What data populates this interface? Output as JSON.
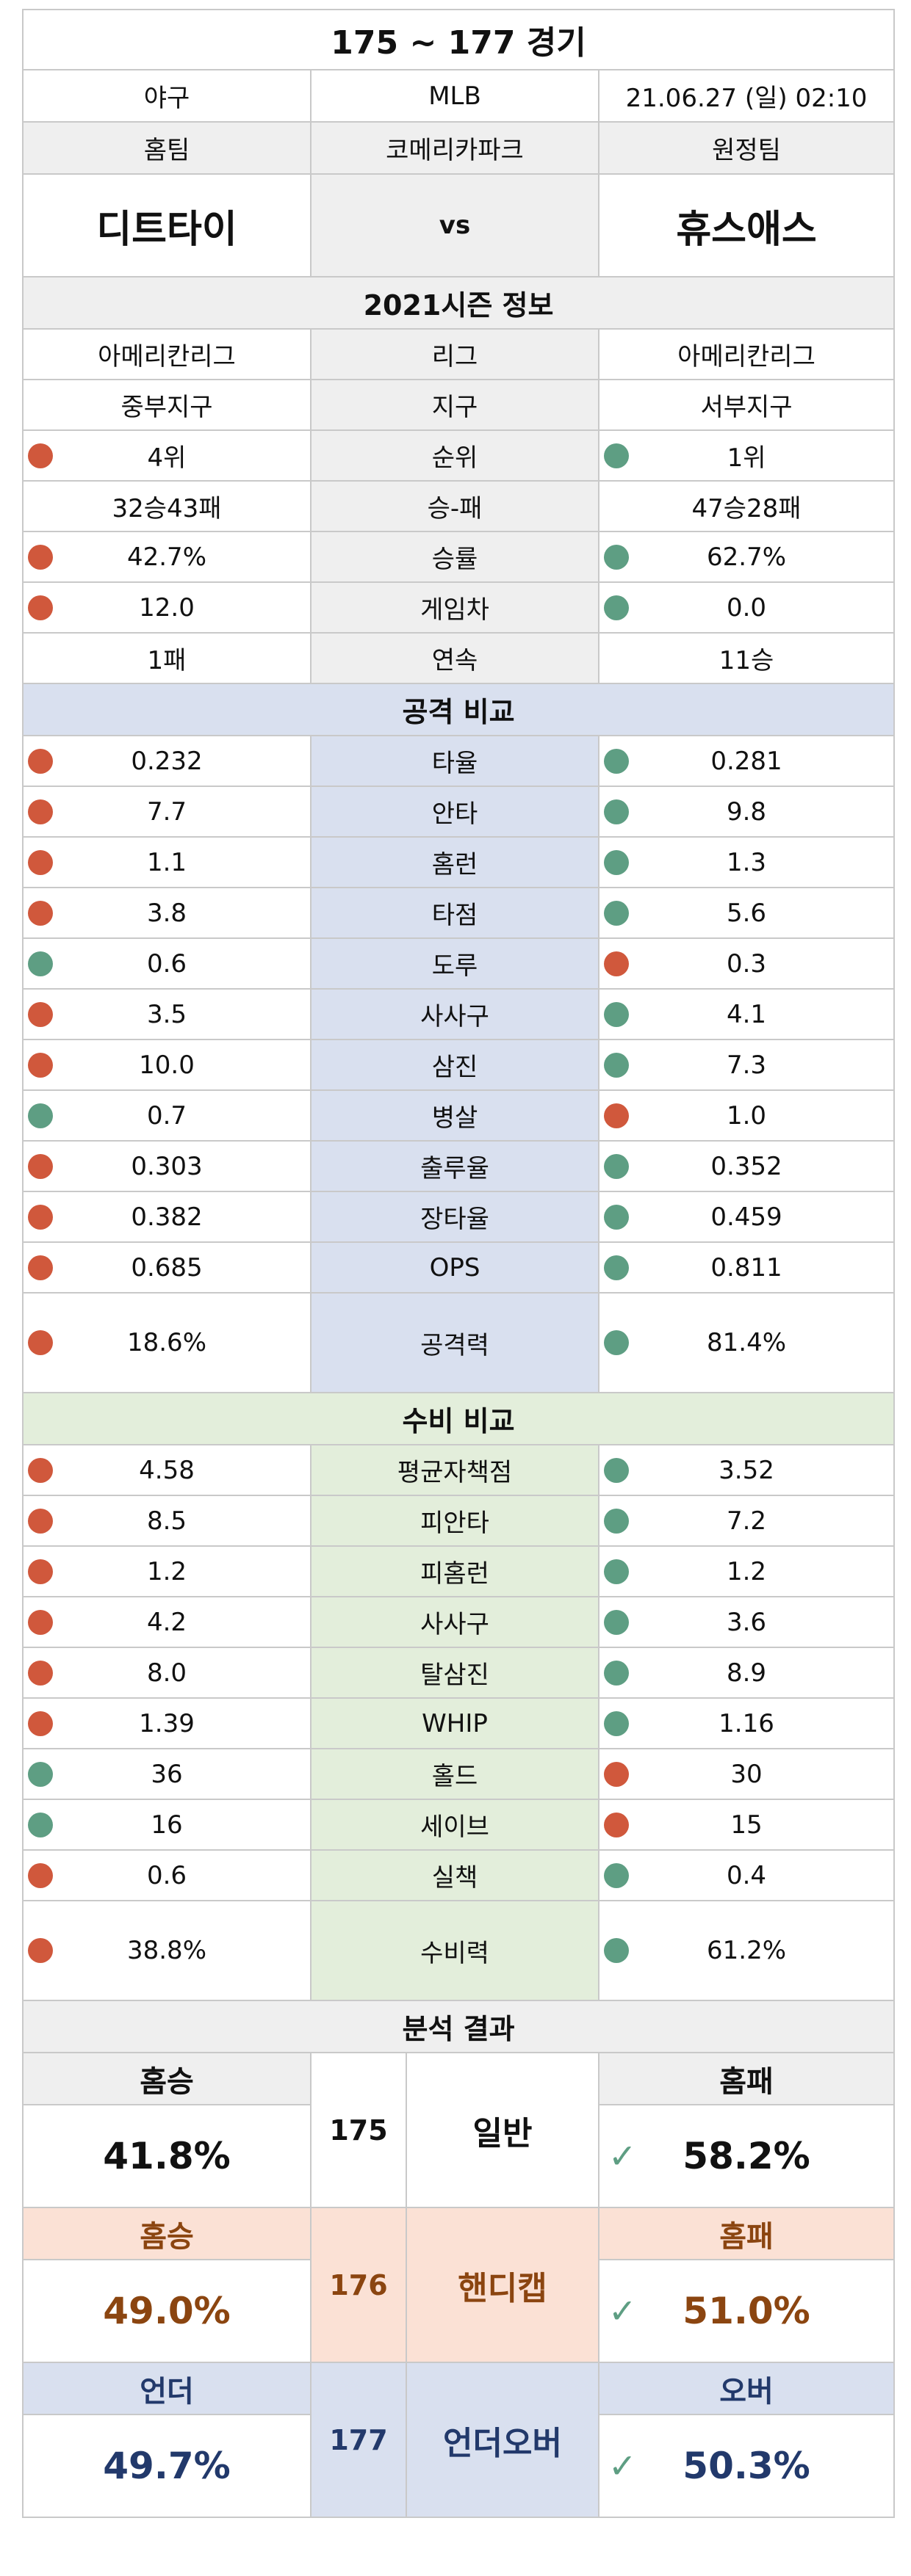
{
  "title": "175 ~ 177 경기",
  "info": {
    "sport": "야구",
    "league": "MLB",
    "datetime": "21.06.27 (일) 02:10"
  },
  "teams": {
    "home_label": "홈팀",
    "stadium": "코메리카파크",
    "away_label": "원정팀",
    "home": "디트타이",
    "vs": "vs",
    "away": "휴스애스"
  },
  "season": {
    "header": "2021시즌 정보",
    "rows": [
      {
        "home": "아메리칸리그",
        "label": "리그",
        "away": "아메리칸리그",
        "home_dot": "",
        "away_dot": ""
      },
      {
        "home": "중부지구",
        "label": "지구",
        "away": "서부지구",
        "home_dot": "",
        "away_dot": ""
      },
      {
        "home": "4위",
        "label": "순위",
        "away": "1위",
        "home_dot": "red",
        "away_dot": "green"
      },
      {
        "home": "32승43패",
        "label": "승-패",
        "away": "47승28패",
        "home_dot": "",
        "away_dot": ""
      },
      {
        "home": "42.7%",
        "label": "승률",
        "away": "62.7%",
        "home_dot": "red",
        "away_dot": "green"
      },
      {
        "home": "12.0",
        "label": "게임차",
        "away": "0.0",
        "home_dot": "red",
        "away_dot": "green"
      },
      {
        "home": "1패",
        "label": "연속",
        "away": "11승",
        "home_dot": "",
        "away_dot": ""
      }
    ]
  },
  "offense": {
    "header": "공격 비교",
    "rows": [
      {
        "home": "0.232",
        "label": "타율",
        "away": "0.281",
        "home_dot": "red",
        "away_dot": "green"
      },
      {
        "home": "7.7",
        "label": "안타",
        "away": "9.8",
        "home_dot": "red",
        "away_dot": "green"
      },
      {
        "home": "1.1",
        "label": "홈런",
        "away": "1.3",
        "home_dot": "red",
        "away_dot": "green"
      },
      {
        "home": "3.8",
        "label": "타점",
        "away": "5.6",
        "home_dot": "red",
        "away_dot": "green"
      },
      {
        "home": "0.6",
        "label": "도루",
        "away": "0.3",
        "home_dot": "green",
        "away_dot": "red"
      },
      {
        "home": "3.5",
        "label": "사사구",
        "away": "4.1",
        "home_dot": "red",
        "away_dot": "green"
      },
      {
        "home": "10.0",
        "label": "삼진",
        "away": "7.3",
        "home_dot": "red",
        "away_dot": "green"
      },
      {
        "home": "0.7",
        "label": "병살",
        "away": "1.0",
        "home_dot": "green",
        "away_dot": "red"
      },
      {
        "home": "0.303",
        "label": "출루율",
        "away": "0.352",
        "home_dot": "red",
        "away_dot": "green"
      },
      {
        "home": "0.382",
        "label": "장타율",
        "away": "0.459",
        "home_dot": "red",
        "away_dot": "green"
      },
      {
        "home": "0.685",
        "label": "OPS",
        "away": "0.811",
        "home_dot": "red",
        "away_dot": "green"
      }
    ],
    "power": {
      "home": "18.6%",
      "label": "공격력",
      "away": "81.4%",
      "home_dot": "red",
      "away_dot": "green"
    }
  },
  "defense": {
    "header": "수비 비교",
    "rows": [
      {
        "home": "4.58",
        "label": "평균자책점",
        "away": "3.52",
        "home_dot": "red",
        "away_dot": "green"
      },
      {
        "home": "8.5",
        "label": "피안타",
        "away": "7.2",
        "home_dot": "red",
        "away_dot": "green"
      },
      {
        "home": "1.2",
        "label": "피홈런",
        "away": "1.2",
        "home_dot": "red",
        "away_dot": "green"
      },
      {
        "home": "4.2",
        "label": "사사구",
        "away": "3.6",
        "home_dot": "red",
        "away_dot": "green"
      },
      {
        "home": "8.0",
        "label": "탈삼진",
        "away": "8.9",
        "home_dot": "red",
        "away_dot": "green"
      },
      {
        "home": "1.39",
        "label": "WHIP",
        "away": "1.16",
        "home_dot": "red",
        "away_dot": "green"
      },
      {
        "home": "36",
        "label": "홀드",
        "away": "30",
        "home_dot": "green",
        "away_dot": "red"
      },
      {
        "home": "16",
        "label": "세이브",
        "away": "15",
        "home_dot": "green",
        "away_dot": "red"
      },
      {
        "home": "0.6",
        "label": "실책",
        "away": "0.4",
        "home_dot": "red",
        "away_dot": "green"
      }
    ],
    "power": {
      "home": "38.8%",
      "label": "수비력",
      "away": "61.2%",
      "home_dot": "red",
      "away_dot": "green"
    }
  },
  "analysis": {
    "header": "분석 결과",
    "general": {
      "left_label": "홈승",
      "left_value": "41.8%",
      "game": "175",
      "type": "일반",
      "right_label": "홈패",
      "right_value": "58.2%",
      "pick": "right"
    },
    "handicap": {
      "left_label": "홈승",
      "left_value": "49.0%",
      "game": "176",
      "type": "핸디캡",
      "right_label": "홈패",
      "right_value": "51.0%",
      "pick": "right"
    },
    "underover": {
      "left_label": "언더",
      "left_value": "49.7%",
      "game": "177",
      "type": "언더오버",
      "right_label": "오버",
      "right_value": "50.3%",
      "pick": "right"
    }
  },
  "colors": {
    "red_dot": "#d0583c",
    "green_dot": "#5e9e83",
    "offense_bg": "#d9e0ef",
    "defense_bg": "#e3eedb",
    "handicap_bg": "#fbe1d5",
    "handicap_text": "#8b4510",
    "underover_text": "#22396b"
  }
}
